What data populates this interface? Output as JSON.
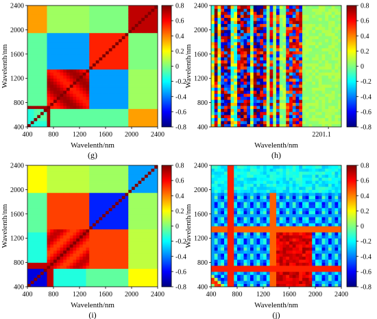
{
  "colormap": {
    "name": "jet",
    "stops": [
      "#00007f",
      "#0000ff",
      "#0080ff",
      "#00ffff",
      "#80ff80",
      "#ffff00",
      "#ff8000",
      "#ff0000",
      "#7f0000"
    ]
  },
  "chart_data": [
    {
      "panel": "(g)",
      "type": "heatmap",
      "xlabel": "Wavelenth/nm",
      "ylabel": "Wavelenth/nm",
      "xticks": [
        "400",
        "800",
        "1200",
        "1600",
        "2000",
        "2400"
      ],
      "yticks": [
        "400",
        "800",
        "1200",
        "1600",
        "2000",
        "2400"
      ],
      "xlim": [
        400,
        2400
      ],
      "ylim": [
        400,
        2400
      ],
      "colorbar": {
        "ticks": [
          "0.8",
          "0.6",
          "0.4",
          "0.2",
          "0",
          "-0.2",
          "-0.4",
          "-0.6",
          "-0.8"
        ],
        "range": [
          -0.8,
          0.8
        ]
      }
    },
    {
      "panel": "(h)",
      "type": "heatmap",
      "xlabel": "Wavelenth/nm",
      "ylabel": "Wavelenth/nm",
      "xticks": [],
      "x_annotation": "2201.1",
      "yticks": [
        "400",
        "800",
        "1200",
        "1600",
        "2000",
        "2400"
      ],
      "xlim": [
        400,
        2400
      ],
      "ylim": [
        400,
        2400
      ],
      "colorbar": {
        "ticks": [
          "0.8",
          "0.6",
          "0.4",
          "0.2",
          "0",
          "-0.2",
          "-0.4",
          "-0.6",
          "-0.8"
        ],
        "range": [
          -0.8,
          0.8
        ]
      }
    },
    {
      "panel": "(i)",
      "type": "heatmap",
      "xlabel": "Wavelenth/nm",
      "ylabel": "Wavelenth/nm",
      "xticks": [
        "400",
        "800",
        "1200",
        "1600",
        "2000",
        "2400"
      ],
      "yticks": [
        "400",
        "800",
        "1200",
        "1600",
        "2000",
        "2400"
      ],
      "xlim": [
        400,
        2400
      ],
      "ylim": [
        400,
        2400
      ],
      "colorbar": {
        "ticks": [
          "0.8",
          "0.6",
          "0.4",
          "0.2",
          "0",
          "-0.2",
          "-0.4",
          "-0.6",
          "-0.8"
        ],
        "range": [
          -0.8,
          0.8
        ]
      }
    },
    {
      "panel": "(j)",
      "type": "heatmap",
      "xlabel": "Wavelenth/nm",
      "ylabel": "Wavelenth/nm",
      "xticks": [
        "400",
        "800",
        "1200",
        "1600",
        "2000",
        "2400"
      ],
      "yticks": [
        "400",
        "800",
        "1200",
        "1600",
        "2000",
        "2400"
      ],
      "xlim": [
        400,
        2400
      ],
      "ylim": [
        400,
        2400
      ],
      "colorbar": {
        "ticks": [
          "0.8",
          "0.6",
          "0.4",
          "0.2",
          "0",
          "-0.2",
          "-0.4",
          "-0.6",
          "-0.8"
        ],
        "range": [
          -0.8,
          0.8
        ]
      }
    }
  ]
}
